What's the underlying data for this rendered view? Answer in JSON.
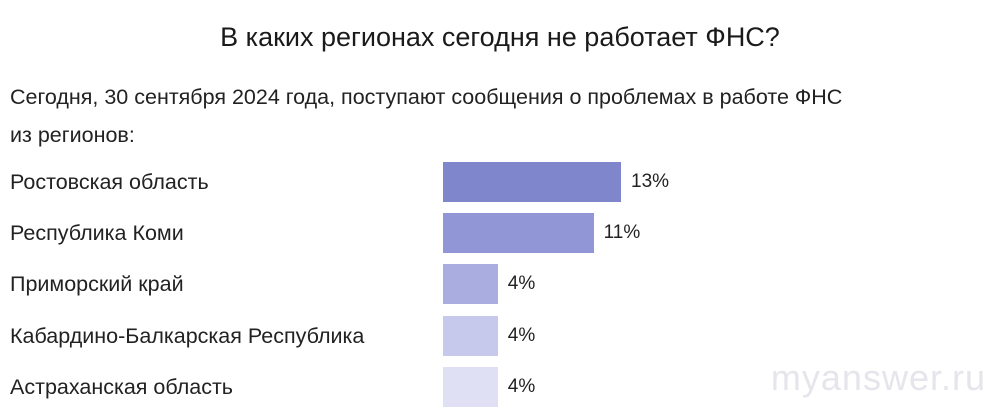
{
  "page": {
    "title": "В каких регионах сегодня не работает ФНС?",
    "intro_line1": "Сегодня, 30 сентября 2024 года, поступают сообщения о проблемах в работе ФНС",
    "intro_line2": "из регионов:",
    "watermark": "myanswer.ru"
  },
  "chart_data": {
    "type": "bar",
    "orientation": "horizontal",
    "categories": [
      "Ростовская область",
      "Республика Коми",
      "Приморский край",
      "Кабардино-Балкарская Республика",
      "Астраханская область"
    ],
    "values": [
      13,
      11,
      4,
      4,
      4
    ],
    "value_labels": [
      "13%",
      "11%",
      "4%",
      "4%",
      "4%"
    ],
    "unit": "%",
    "colors": [
      "#7f86cc",
      "#9197d6",
      "#a9addf",
      "#c6c8ec",
      "#dfe0f4"
    ],
    "grid": false,
    "legend": "none"
  }
}
